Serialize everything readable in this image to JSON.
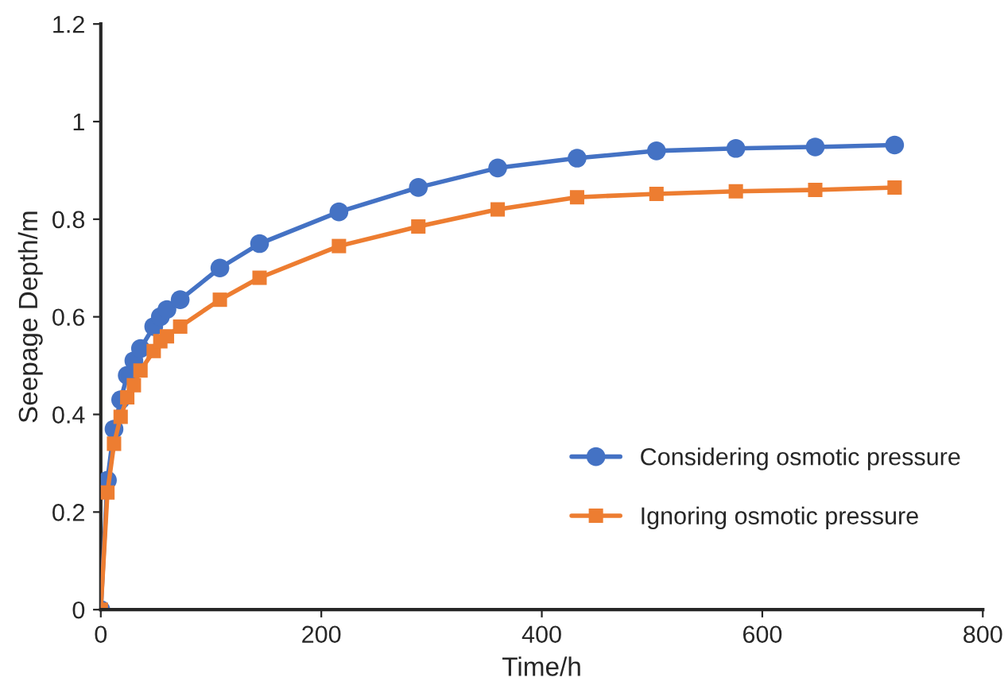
{
  "chart_data": {
    "type": "line",
    "xlabel": "Time/h",
    "ylabel": "Seepage Depth/m",
    "x": [
      0,
      6,
      12,
      18,
      24,
      30,
      36,
      48,
      54,
      60,
      72,
      108,
      144,
      216,
      288,
      360,
      432,
      504,
      576,
      648,
      720
    ],
    "series": [
      {
        "name": "Considering osmotic pressure",
        "color": "#4472c4",
        "marker": "circle",
        "values": [
          0,
          0.265,
          0.37,
          0.43,
          0.48,
          0.51,
          0.535,
          0.58,
          0.6,
          0.615,
          0.635,
          0.7,
          0.75,
          0.815,
          0.865,
          0.905,
          0.925,
          0.94,
          0.945,
          0.948,
          0.952
        ]
      },
      {
        "name": "Ignoring osmotic pressure",
        "color": "#ed7d31",
        "marker": "square",
        "values": [
          0,
          0.24,
          0.34,
          0.395,
          0.435,
          0.46,
          0.49,
          0.53,
          0.55,
          0.56,
          0.58,
          0.635,
          0.68,
          0.745,
          0.785,
          0.82,
          0.845,
          0.852,
          0.857,
          0.86,
          0.865
        ]
      }
    ],
    "xlim": [
      0,
      800
    ],
    "xticks": [
      0,
      200,
      400,
      600,
      800
    ],
    "ylim": [
      0,
      1.2
    ],
    "yticks": [
      0,
      0.2,
      0.4,
      0.6,
      0.8,
      1,
      1.2
    ],
    "grid": false,
    "legend": "bottom right",
    "line_style": "solid"
  }
}
